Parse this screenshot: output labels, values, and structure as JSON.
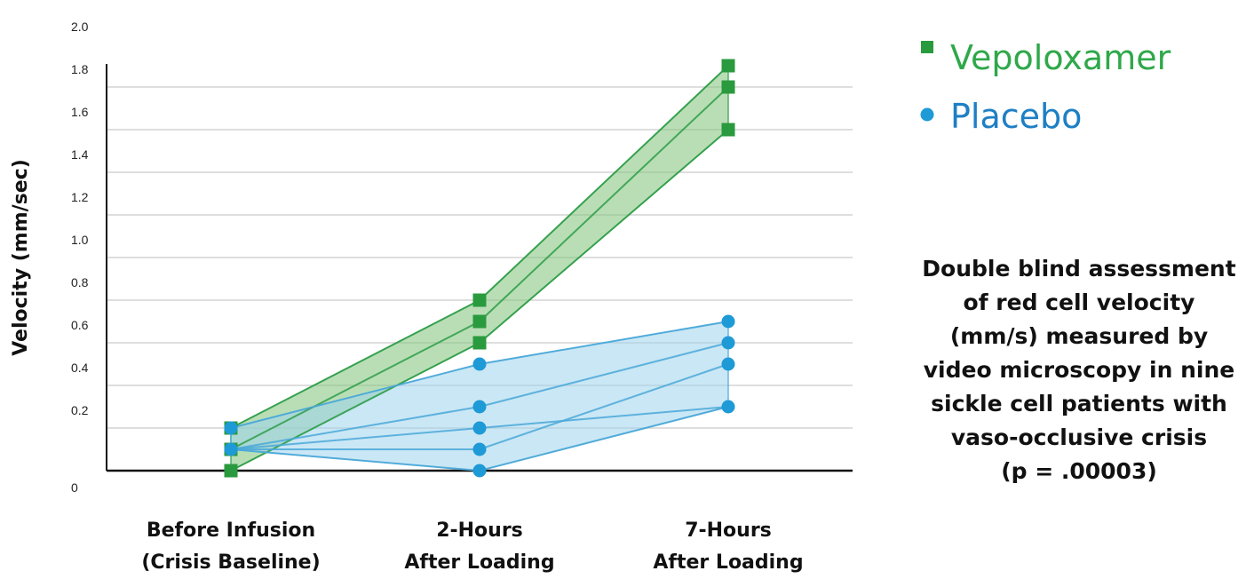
{
  "chart_data": {
    "type": "line",
    "ylabel": "Velocity (mm/sec)",
    "xlabel": "",
    "ylim": [
      0,
      2.0
    ],
    "yticks": [
      "0",
      "0.2",
      "0.4",
      "0.6",
      "0.8",
      "1.0",
      "1.2",
      "1.4",
      "1.6",
      "1.8",
      "2.0"
    ],
    "grid": true,
    "legend_position": "top-right",
    "categories": [
      [
        "Before Infusion",
        "(Crisis Baseline)"
      ],
      [
        "2-Hours",
        "After Loading"
      ],
      [
        "7-Hours",
        "After Loading"
      ]
    ],
    "groups": [
      {
        "name": "Vepoloxamer",
        "color": "#2e9e48",
        "marker_color": "#2a9a3e",
        "band_color": "#7fc37a",
        "marker": "square",
        "band": [
          [
            0.0,
            0.2
          ],
          [
            0.6,
            0.8
          ],
          [
            1.6,
            1.9
          ]
        ],
        "patients": [
          [
            0.2,
            0.8,
            1.9
          ],
          [
            0.1,
            0.7,
            1.8
          ],
          [
            0.0,
            0.6,
            1.6
          ]
        ]
      },
      {
        "name": "Placebo",
        "color": "#4aa8d8",
        "marker_color": "#1e9ad6",
        "band_color": "#9ed3ec",
        "marker": "circle",
        "band": [
          [
            0.1,
            0.2
          ],
          [
            0.0,
            0.5
          ],
          [
            0.3,
            0.7
          ]
        ],
        "patients": [
          [
            0.2,
            0.5,
            0.7
          ],
          [
            0.1,
            0.3,
            0.6
          ],
          [
            0.1,
            0.2,
            0.3
          ],
          [
            0.1,
            0.1,
            0.5
          ],
          [
            0.1,
            0.0,
            0.3
          ]
        ]
      }
    ],
    "annotation": [
      "Double blind assessment",
      "of red cell velocity",
      "(mm/s) measured by",
      "video microscopy in nine",
      "sickle cell patients with",
      "vaso-occlusive crisis",
      "(p = .00003)"
    ]
  }
}
